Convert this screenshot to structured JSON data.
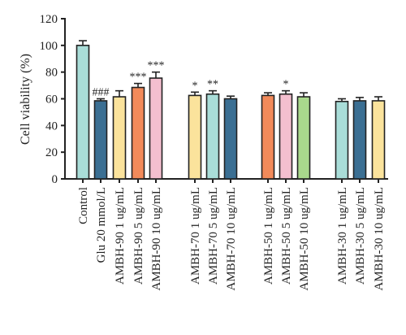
{
  "chart_data": {
    "type": "bar",
    "title": "",
    "xlabel": "",
    "ylabel": "Cell viability (%)",
    "ylim": [
      0,
      120
    ],
    "yticks": [
      0,
      20,
      40,
      60,
      80,
      100,
      120
    ],
    "grid": false,
    "legend": "none",
    "categories": [
      "Control",
      "Glu 20 mmol/L",
      "AMBH-90 1 ug/mL",
      "AMBH-90 5 ug/mL",
      "AMBH-90 10 ug/mL",
      "AMBH-70 1 ug/mL",
      "AMBH-70 5 ug/mL",
      "AMBH-70 10 ug/mL",
      "AMBH-50 1 ug/mL",
      "AMBH-50 5 ug/mL",
      "AMBH-50 10 ug/mL",
      "AMBH-30 1 ug/mL",
      "AMBH-30 5 ug/mL",
      "AMBH-30 10 ug/mL"
    ],
    "values": [
      100,
      58.5,
      61.5,
      68.5,
      75.5,
      62.5,
      63.5,
      60,
      62.5,
      63.5,
      61.5,
      58,
      58.5,
      58.5
    ],
    "errors": [
      3.5,
      1.5,
      4.5,
      3,
      4.5,
      2.5,
      2.5,
      2,
      2,
      2.5,
      3,
      2,
      2.5,
      3
    ],
    "significance": [
      "",
      "###",
      "",
      "***",
      "***",
      "*",
      "**",
      "",
      "",
      "*",
      "",
      "",
      "",
      ""
    ],
    "colors": [
      "#a9ddd8",
      "#3b6f93",
      "#fbe39c",
      "#f28a5a",
      "#f4bfcf",
      "#fbe39c",
      "#a9ddd8",
      "#3b6f93",
      "#f28a5a",
      "#f4bfcf",
      "#a9d88c",
      "#a9ddd8",
      "#3b6f93",
      "#fbe39c"
    ]
  }
}
